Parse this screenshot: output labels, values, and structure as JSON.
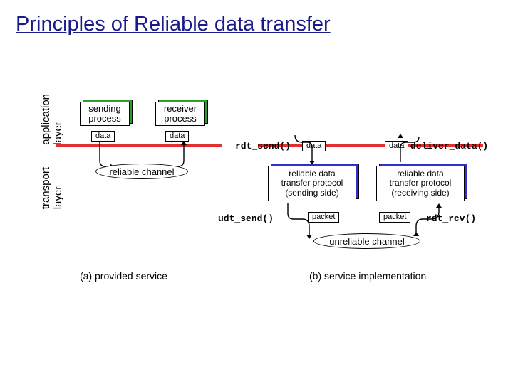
{
  "title": "Principles of Reliable data transfer",
  "layer_labels": {
    "application": "application\nlayer",
    "transport": "transport\nlayer"
  },
  "left": {
    "sending": "sending\nprocess",
    "receiver": "receiver\nprocess",
    "data": "data",
    "channel": "reliable channel",
    "caption": "(a)  provided service"
  },
  "right": {
    "rdt_send": "rdt_send()",
    "deliver_data": "deliver_data()",
    "sender_box": "reliable data\ntransfer protocol\n(sending side)",
    "receiver_box": "reliable data\ntransfer protocol\n(receiving side)",
    "udt_send": "udt_send()",
    "rdt_rcv": "rdt_rcv()",
    "packet": "packet",
    "data": "data",
    "channel": "unreliable channel",
    "caption": "(b) service implementation"
  },
  "colors": {
    "back_green": "#2aa02a",
    "back_blue": "#3030d0",
    "red": "#e03030",
    "title": "#1a1a8a"
  }
}
